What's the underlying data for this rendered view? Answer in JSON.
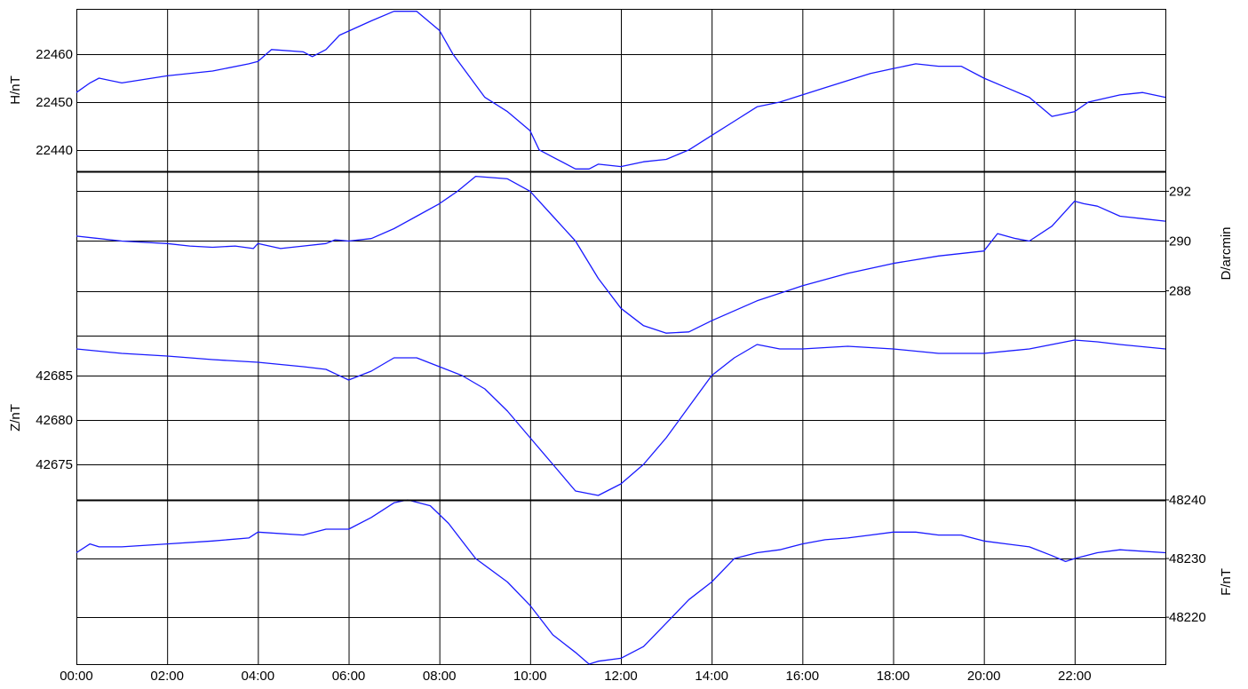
{
  "chart_data": {
    "type": "line",
    "line_color": "#1a1aff",
    "grid": true,
    "x_axis": {
      "ticks": [
        "00:00",
        "02:00",
        "04:00",
        "06:00",
        "08:00",
        "10:00",
        "12:00",
        "14:00",
        "16:00",
        "18:00",
        "20:00",
        "22:00"
      ],
      "range_hours": [
        0,
        24
      ]
    },
    "panels": [
      {
        "id": "H",
        "ylabel": "H/nT",
        "ylabel_side": "left",
        "yticks": [
          22440,
          22450,
          22460
        ],
        "ylim": [
          22435.5,
          22469.5
        ],
        "points": [
          [
            0,
            22452
          ],
          [
            0.3,
            22454
          ],
          [
            0.5,
            22455
          ],
          [
            1,
            22454
          ],
          [
            2,
            22455.5
          ],
          [
            3,
            22456.5
          ],
          [
            3.8,
            22458
          ],
          [
            4,
            22458.5
          ],
          [
            4.3,
            22461
          ],
          [
            5,
            22460.5
          ],
          [
            5.2,
            22459.5
          ],
          [
            5.5,
            22461
          ],
          [
            5.8,
            22464
          ],
          [
            6.5,
            22467
          ],
          [
            7,
            22469
          ],
          [
            7.5,
            22469
          ],
          [
            8,
            22465
          ],
          [
            8.3,
            22460
          ],
          [
            9,
            22451
          ],
          [
            9.5,
            22448
          ],
          [
            10,
            22444
          ],
          [
            10.2,
            22440
          ],
          [
            10.5,
            22438.5
          ],
          [
            11,
            22436
          ],
          [
            11.3,
            22436
          ],
          [
            11.5,
            22437
          ],
          [
            12,
            22436.5
          ],
          [
            12.5,
            22437.5
          ],
          [
            13,
            22438
          ],
          [
            13.5,
            22440
          ],
          [
            14,
            22443
          ],
          [
            14.5,
            22446
          ],
          [
            15,
            22449
          ],
          [
            15.5,
            22450
          ],
          [
            16,
            22451.5
          ],
          [
            16.5,
            22453
          ],
          [
            17,
            22454.5
          ],
          [
            17.5,
            22456
          ],
          [
            18,
            22457
          ],
          [
            18.5,
            22458
          ],
          [
            19,
            22457.5
          ],
          [
            19.5,
            22457.5
          ],
          [
            20,
            22455
          ],
          [
            20.5,
            22453
          ],
          [
            21,
            22451
          ],
          [
            21.5,
            22447
          ],
          [
            22,
            22448
          ],
          [
            22.3,
            22450
          ],
          [
            23,
            22451.5
          ],
          [
            23.5,
            22452
          ],
          [
            24,
            22451
          ]
        ]
      },
      {
        "id": "D",
        "ylabel": "D/arcmin",
        "ylabel_side": "right",
        "yticks": [
          288,
          290,
          292
        ],
        "ylim": [
          286.2,
          292.8
        ],
        "points": [
          [
            0,
            290.2
          ],
          [
            0.5,
            290.1
          ],
          [
            1,
            290
          ],
          [
            2,
            289.9
          ],
          [
            2.5,
            289.8
          ],
          [
            3,
            289.75
          ],
          [
            3.5,
            289.8
          ],
          [
            3.9,
            289.7
          ],
          [
            4,
            289.9
          ],
          [
            4.5,
            289.7
          ],
          [
            5,
            289.8
          ],
          [
            5.5,
            289.9
          ],
          [
            5.7,
            290.05
          ],
          [
            6,
            290
          ],
          [
            6.5,
            290.1
          ],
          [
            7,
            290.5
          ],
          [
            7.5,
            291
          ],
          [
            8,
            291.5
          ],
          [
            8.4,
            292
          ],
          [
            8.8,
            292.6
          ],
          [
            9.5,
            292.5
          ],
          [
            10,
            292
          ],
          [
            10.5,
            291
          ],
          [
            11,
            290
          ],
          [
            11.5,
            288.5
          ],
          [
            12,
            287.3
          ],
          [
            12.5,
            286.6
          ],
          [
            13,
            286.3
          ],
          [
            13.5,
            286.35
          ],
          [
            14,
            286.8
          ],
          [
            15,
            287.6
          ],
          [
            16,
            288.2
          ],
          [
            17,
            288.7
          ],
          [
            18,
            289.1
          ],
          [
            19,
            289.4
          ],
          [
            20,
            289.6
          ],
          [
            20.3,
            290.3
          ],
          [
            20.7,
            290.1
          ],
          [
            21,
            290
          ],
          [
            21.5,
            290.6
          ],
          [
            22,
            291.6
          ],
          [
            22.2,
            291.5
          ],
          [
            22.5,
            291.4
          ],
          [
            23,
            291
          ],
          [
            23.5,
            290.9
          ],
          [
            24,
            290.8
          ]
        ]
      },
      {
        "id": "Z",
        "ylabel": "Z/nT",
        "ylabel_side": "left",
        "yticks": [
          42675,
          42680,
          42685
        ],
        "ylim": [
          42671,
          42689.5
        ],
        "points": [
          [
            0,
            42688
          ],
          [
            1,
            42687.5
          ],
          [
            2,
            42687.2
          ],
          [
            3,
            42686.8
          ],
          [
            4,
            42686.5
          ],
          [
            5,
            42686
          ],
          [
            5.5,
            42685.7
          ],
          [
            6,
            42684.5
          ],
          [
            6.5,
            42685.5
          ],
          [
            7,
            42687
          ],
          [
            7.5,
            42687
          ],
          [
            8,
            42686
          ],
          [
            8.5,
            42685
          ],
          [
            9,
            42683.5
          ],
          [
            9.5,
            42681
          ],
          [
            10,
            42678
          ],
          [
            10.5,
            42675
          ],
          [
            11,
            42672
          ],
          [
            11.5,
            42671.5
          ],
          [
            12,
            42672.8
          ],
          [
            12.5,
            42675
          ],
          [
            13,
            42678
          ],
          [
            13.5,
            42681.5
          ],
          [
            14,
            42685
          ],
          [
            14.5,
            42687
          ],
          [
            15,
            42688.5
          ],
          [
            15.5,
            42688
          ],
          [
            16,
            42688
          ],
          [
            17,
            42688.3
          ],
          [
            18,
            42688
          ],
          [
            19,
            42687.5
          ],
          [
            20,
            42687.5
          ],
          [
            21,
            42688
          ],
          [
            22,
            42689
          ],
          [
            22.5,
            42688.8
          ],
          [
            23,
            42688.5
          ],
          [
            24,
            42688
          ]
        ]
      },
      {
        "id": "F",
        "ylabel": "F/nT",
        "ylabel_side": "right",
        "yticks": [
          48220,
          48230,
          48240
        ],
        "ylim": [
          48212,
          48240
        ],
        "points": [
          [
            0,
            48231
          ],
          [
            0.3,
            48232.5
          ],
          [
            0.5,
            48232
          ],
          [
            1,
            48232
          ],
          [
            2,
            48232.5
          ],
          [
            3,
            48233
          ],
          [
            3.8,
            48233.5
          ],
          [
            4,
            48234.5
          ],
          [
            5,
            48234
          ],
          [
            5.5,
            48235
          ],
          [
            6,
            48235
          ],
          [
            6.5,
            48237
          ],
          [
            7,
            48239.5
          ],
          [
            7.3,
            48240
          ],
          [
            7.8,
            48239
          ],
          [
            8.2,
            48236
          ],
          [
            8.8,
            48230
          ],
          [
            9.5,
            48226
          ],
          [
            10,
            48222
          ],
          [
            10.5,
            48217
          ],
          [
            11,
            48214
          ],
          [
            11.3,
            48212
          ],
          [
            11.5,
            48212.5
          ],
          [
            12,
            48213
          ],
          [
            12.5,
            48215
          ],
          [
            13,
            48219
          ],
          [
            13.5,
            48223
          ],
          [
            14,
            48226
          ],
          [
            14.5,
            48230
          ],
          [
            15,
            48231
          ],
          [
            15.5,
            48231.5
          ],
          [
            16,
            48232.5
          ],
          [
            16.5,
            48233.2
          ],
          [
            17,
            48233.5
          ],
          [
            17.5,
            48234
          ],
          [
            18,
            48234.5
          ],
          [
            18.5,
            48234.5
          ],
          [
            19,
            48234
          ],
          [
            19.5,
            48234
          ],
          [
            20,
            48233
          ],
          [
            20.5,
            48232.5
          ],
          [
            21,
            48232
          ],
          [
            21.5,
            48230.5
          ],
          [
            21.8,
            48229.5
          ],
          [
            22,
            48230
          ],
          [
            22.5,
            48231
          ],
          [
            23,
            48231.5
          ],
          [
            24,
            48231
          ]
        ]
      }
    ]
  }
}
